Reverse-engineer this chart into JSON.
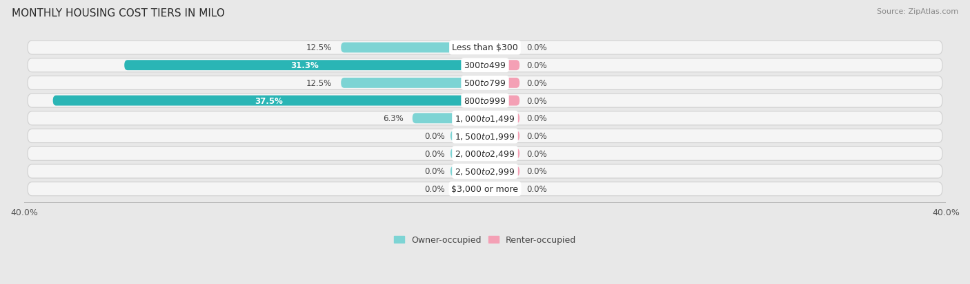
{
  "title": "MONTHLY HOUSING COST TIERS IN MILO",
  "source": "Source: ZipAtlas.com",
  "categories": [
    "Less than $300",
    "$300 to $499",
    "$500 to $799",
    "$800 to $999",
    "$1,000 to $1,499",
    "$1,500 to $1,999",
    "$2,000 to $2,499",
    "$2,500 to $2,999",
    "$3,000 or more"
  ],
  "owner_values": [
    12.5,
    31.3,
    12.5,
    37.5,
    6.3,
    0.0,
    0.0,
    0.0,
    0.0
  ],
  "renter_values": [
    0.0,
    0.0,
    0.0,
    0.0,
    0.0,
    0.0,
    0.0,
    0.0,
    0.0
  ],
  "owner_color_main": "#2ab5b5",
  "owner_color_light": "#7dd4d4",
  "renter_color": "#f4a0b5",
  "axis_max": 40.0,
  "bg_color": "#e8e8e8",
  "row_bg_color": "#f5f5f5",
  "row_border_color": "#d0d0d0",
  "title_fontsize": 11,
  "label_fontsize": 9,
  "value_fontsize": 8.5,
  "tick_fontsize": 9,
  "source_fontsize": 8,
  "stub_size": 3.0
}
